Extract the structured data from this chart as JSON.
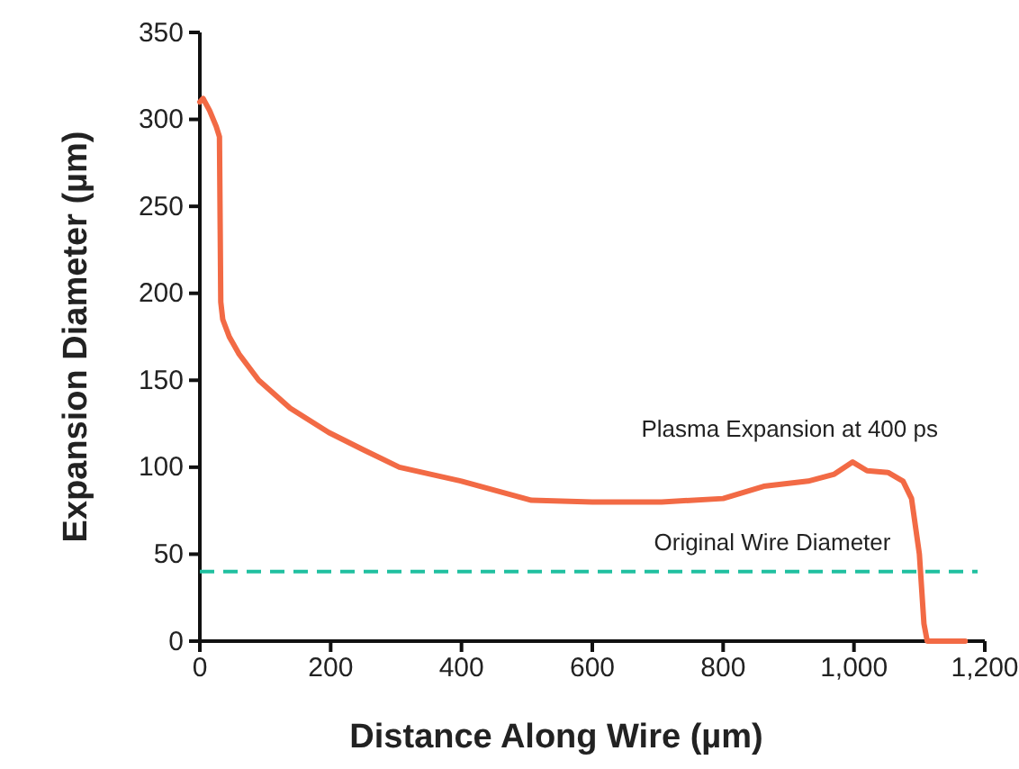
{
  "chart_data": {
    "type": "line",
    "xlabel": "Distance Along Wire (µm)",
    "ylabel": "Expansion Diameter (µm)",
    "xlim": [
      0,
      1200
    ],
    "ylim": [
      0,
      350
    ],
    "xticks": [
      0,
      200,
      400,
      600,
      800,
      {
        "value": 1000,
        "label": "1,000"
      },
      {
        "value": 1200,
        "label": "1,200"
      }
    ],
    "yticks": [
      0,
      50,
      100,
      150,
      200,
      250,
      300,
      350
    ],
    "series": [
      {
        "name": "Plasma Expansion at 400 ps",
        "color": "#f26a45",
        "x": [
          0,
          5,
          15,
          25,
          30,
          32,
          35,
          45,
          60,
          90,
          138,
          197,
          250,
          305,
          400,
          507,
          600,
          706,
          800,
          862,
          930,
          970,
          998,
          1020,
          1052,
          1075,
          1088,
          1100,
          1107,
          1112,
          1140,
          1170
        ],
        "values": [
          310,
          312,
          305,
          296,
          290,
          195,
          185,
          175,
          165,
          150,
          134,
          120,
          110,
          100,
          92,
          81,
          80,
          80,
          82,
          89,
          92,
          96,
          103,
          98,
          97,
          92,
          82,
          50,
          10,
          0,
          0,
          0
        ]
      }
    ],
    "ref_lines": [
      {
        "axis": "y",
        "value": 40,
        "label": "Original Wire Diameter",
        "color": "#20c0a0",
        "line_style": "dashed"
      }
    ],
    "grid": false,
    "marker": "none",
    "line_style": "solid"
  }
}
